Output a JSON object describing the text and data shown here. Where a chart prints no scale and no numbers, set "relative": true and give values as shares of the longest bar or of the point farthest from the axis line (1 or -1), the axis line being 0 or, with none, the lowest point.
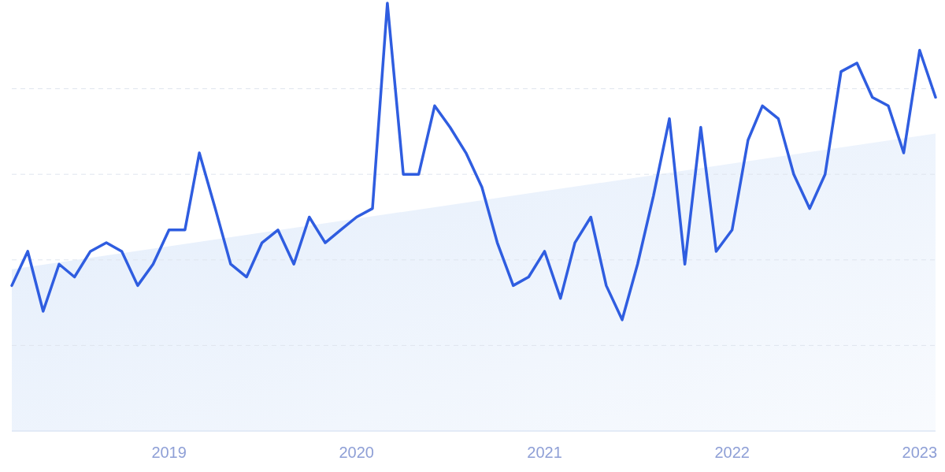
{
  "chart_data": {
    "type": "line",
    "relative": true,
    "grid": "y",
    "tick_labels": "x",
    "xlim": [
      "2018-03",
      "2023-02"
    ],
    "xticks": [
      {
        "value": "2019",
        "label": "2019"
      },
      {
        "value": "2020",
        "label": "2020"
      },
      {
        "value": "2021",
        "label": "2021"
      },
      {
        "value": "2022",
        "label": "2022"
      },
      {
        "value": "2023",
        "label": "2023"
      }
    ],
    "series": [
      {
        "type": "area",
        "color": "#e3edfb",
        "x": [
          "2018-03",
          "2023-02"
        ],
        "values": [
          0.378,
          0.695
        ]
      },
      {
        "color": "#2f5de0",
        "x": [
          "2018-03",
          "2018-04",
          "2018-05",
          "2018-06",
          "2018-07",
          "2018-08",
          "2018-09",
          "2018-10",
          "2018-11",
          "2018-12",
          "2019-01",
          "2019-02",
          "2019-03",
          "2019-04",
          "2019-05",
          "2019-06",
          "2019-07",
          "2019-08",
          "2019-09",
          "2019-10",
          "2019-11",
          "2019-12",
          "2020-01",
          "2020-02",
          "2020-03",
          "2020-04",
          "2020-05",
          "2020-06",
          "2020-07",
          "2020-08",
          "2020-09",
          "2020-10",
          "2020-11",
          "2020-12",
          "2021-01",
          "2021-02",
          "2021-03",
          "2021-04",
          "2021-05",
          "2021-06",
          "2021-07",
          "2021-08",
          "2021-09",
          "2021-10",
          "2021-11",
          "2021-12",
          "2022-01",
          "2022-02",
          "2022-03",
          "2022-04",
          "2022-05",
          "2022-06",
          "2022-07",
          "2022-08",
          "2022-09",
          "2022-10",
          "2022-11",
          "2022-12",
          "2023-01",
          "2023-02"
        ],
        "values": [
          0.34,
          0.42,
          0.28,
          0.39,
          0.36,
          0.42,
          0.44,
          0.42,
          0.34,
          0.39,
          0.47,
          0.47,
          0.65,
          0.52,
          0.39,
          0.36,
          0.44,
          0.47,
          0.39,
          0.5,
          0.44,
          0.47,
          0.5,
          0.52,
          1,
          0.6,
          0.6,
          0.76,
          0.71,
          0.65,
          0.57,
          0.44,
          0.34,
          0.36,
          0.42,
          0.31,
          0.44,
          0.5,
          0.34,
          0.26,
          0.39,
          0.55,
          0.73,
          0.39,
          0.71,
          0.42,
          0.47,
          0.68,
          0.76,
          0.73,
          0.6,
          0.52,
          0.6,
          0.84,
          0.86,
          0.78,
          0.76,
          0.65,
          0.89,
          0.78
        ]
      }
    ]
  }
}
